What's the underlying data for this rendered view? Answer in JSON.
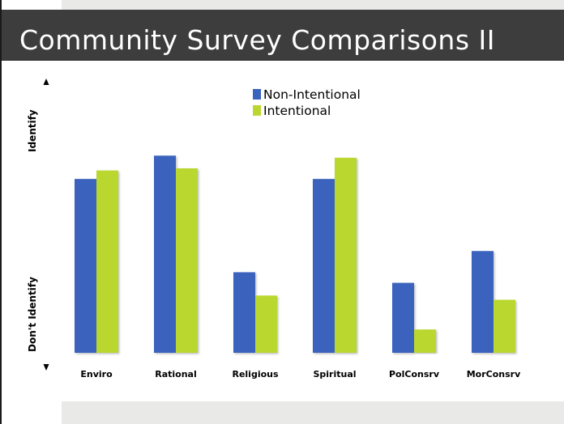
{
  "slide": {
    "title": "Community Survey Comparisons II"
  },
  "colors": {
    "title_bar": "#3d3d3d",
    "accent_strip": "#e9e9e7",
    "non_intentional": "#3a63bd",
    "intentional": "#b9d72e"
  },
  "chart_data": {
    "type": "bar",
    "categories": [
      "Enviro",
      "Rational",
      "Religious",
      "Spiritual",
      "PolConsrv",
      "MorConsrv"
    ],
    "series": [
      {
        "name": "Non-Intentional",
        "values": [
          0.82,
          0.93,
          0.38,
          0.82,
          0.33,
          0.48
        ]
      },
      {
        "name": "Intentional",
        "values": [
          0.86,
          0.87,
          0.27,
          0.92,
          0.11,
          0.25
        ]
      }
    ],
    "title": "",
    "xlabel": "",
    "ylabel_top": "Identify",
    "ylabel_bottom": "Don't Identify",
    "ylim": [
      0,
      1
    ],
    "grid": false,
    "legend_position": "top-center"
  }
}
